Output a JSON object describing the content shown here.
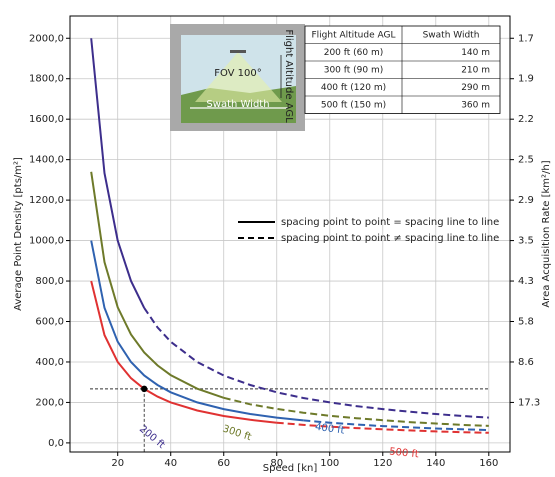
{
  "chart_data": {
    "type": "line",
    "x_label": "Speed [kn]",
    "y_label": "Average Point Density [pts/m²]",
    "y2_label": "Area Acquisition Rate [km²/h]",
    "x": [
      10,
      15,
      20,
      25,
      30,
      35,
      40,
      50,
      60,
      70,
      80,
      90,
      100,
      110,
      120,
      130,
      140,
      150,
      160
    ],
    "series": [
      {
        "name": "200 ft",
        "color": "#3d2e8c",
        "solid_to_x": 30,
        "values": [
          2000,
          1333,
          1000,
          800,
          667,
          571,
          500,
          400,
          333,
          286,
          250,
          222,
          200,
          182,
          167,
          154,
          143,
          133,
          125
        ]
      },
      {
        "name": "300 ft",
        "color": "#6e7a2a",
        "solid_to_x": 60,
        "values": [
          1340,
          893,
          670,
          536,
          447,
          383,
          335,
          268,
          223,
          191,
          168,
          149,
          134,
          122,
          112,
          103,
          96,
          89,
          84
        ]
      },
      {
        "name": "400 ft",
        "color": "#2f62b0",
        "solid_to_x": 90,
        "values": [
          1000,
          667,
          500,
          400,
          333,
          286,
          250,
          200,
          167,
          143,
          125,
          111,
          100,
          91,
          83,
          77,
          71,
          67,
          63
        ]
      },
      {
        "name": "500 ft",
        "color": "#e03232",
        "solid_to_x": 80,
        "values": [
          800,
          533,
          400,
          320,
          267,
          229,
          200,
          160,
          133,
          114,
          100,
          89,
          80,
          73,
          67,
          62,
          57,
          53,
          50
        ]
      }
    ],
    "marker": {
      "x": 30,
      "y": 267
    },
    "xlim": [
      2,
      168
    ],
    "ylim": [
      -45,
      2110
    ],
    "xticks": [
      20,
      40,
      60,
      80,
      100,
      120,
      140,
      160
    ],
    "yticks": [
      {
        "value": 0,
        "label": "0,0"
      },
      {
        "value": 200,
        "label": "200,0"
      },
      {
        "value": 400,
        "label": "400,0"
      },
      {
        "value": 600,
        "label": "600,0"
      },
      {
        "value": 800,
        "label": "800,0"
      },
      {
        "value": 1000,
        "label": "1000,0"
      },
      {
        "value": 1200,
        "label": "1200,0"
      },
      {
        "value": 1400,
        "label": "1400,0"
      },
      {
        "value": 1600,
        "label": "1600,0"
      },
      {
        "value": 1800,
        "label": "1800,0"
      },
      {
        "value": 2000,
        "label": "2000,0"
      }
    ],
    "y2ticks": [
      17.3,
      8.6,
      5.8,
      4.3,
      3.5,
      2.9,
      2.5,
      2.2,
      1.9,
      1.7
    ],
    "grid": true,
    "legend": [
      "spacing point to point = spacing line to line",
      "spacing point to point ≠ spacing line to line"
    ],
    "inset_image": {
      "fov": "FOV 100°",
      "altitude": "Flight Altitude AGL",
      "swath": "Swath Width"
    },
    "table": {
      "header": [
        "Flight Altitude AGL",
        "Swath Width"
      ],
      "rows": [
        [
          "200 ft (60 m)",
          "140 m"
        ],
        [
          "300 ft (90 m)",
          "210 m"
        ],
        [
          "400 ft (120 m)",
          "290 m"
        ],
        [
          "500 ft (150 m)",
          "360 m"
        ]
      ]
    }
  }
}
